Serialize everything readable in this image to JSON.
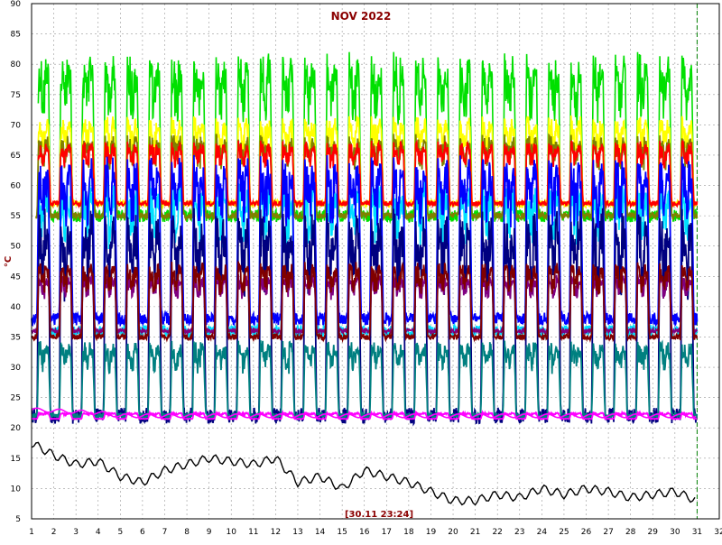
{
  "chart_data": {
    "type": "line",
    "title": "NOV 2022",
    "timestamp_label": "[30.11 23:24]",
    "ylabel": "°C",
    "xlabel": "",
    "xlim": [
      1,
      32
    ],
    "ylim": [
      5,
      90
    ],
    "x_ticks": [
      1,
      2,
      3,
      4,
      5,
      6,
      7,
      8,
      9,
      10,
      11,
      12,
      13,
      14,
      15,
      16,
      17,
      18,
      19,
      20,
      21,
      22,
      23,
      24,
      25,
      26,
      27,
      28,
      29,
      30,
      31,
      32
    ],
    "y_ticks": [
      5,
      10,
      15,
      20,
      25,
      30,
      35,
      40,
      45,
      50,
      55,
      60,
      65,
      70,
      75,
      80,
      85,
      90
    ],
    "grid": true,
    "current_marker_x": 31.0,
    "series": [
      {
        "color": "#00e000",
        "daily_peak": 81,
        "daily_trough": 55,
        "start_day": 1.3
      },
      {
        "color": "#ffff00",
        "daily_peak": 71,
        "daily_trough": 57,
        "start_day": 1.3
      },
      {
        "color": "#808000",
        "daily_peak": 68,
        "daily_trough": 55,
        "start_day": 1.2
      },
      {
        "color": "#ff0000",
        "daily_peak": 67,
        "daily_trough": 57,
        "start_day": 1.3
      },
      {
        "color": "#00e0ff",
        "daily_peak": 60,
        "daily_trough": 36,
        "start_day": 1.2
      },
      {
        "color": "#0000ff",
        "daily_peak": 64,
        "daily_trough": 38,
        "start_day": 1.0
      },
      {
        "color": "#000080",
        "daily_peak": 55,
        "daily_trough": 22,
        "start_day": 1.0
      },
      {
        "color": "#800080",
        "daily_peak": 45,
        "daily_trough": 36,
        "start_day": 1.0
      },
      {
        "color": "#800000",
        "daily_peak": 47,
        "daily_trough": 35,
        "start_day": 1.0
      },
      {
        "color": "#008080",
        "daily_peak": 34,
        "daily_trough": 22,
        "start_day": 1.0
      },
      {
        "color": "#ff00ff",
        "daily_peak": 22.5,
        "daily_trough": 21.5,
        "start_day": 1.0
      },
      {
        "color": "#000000",
        "daily_peak": 17,
        "daily_trough": 7,
        "start_day": 1.0
      }
    ],
    "outdoor_temperature": {
      "color": "#000000",
      "x": [
        1,
        2,
        3,
        4,
        5,
        6,
        7,
        8,
        9,
        10,
        11,
        12,
        13,
        14,
        15,
        16,
        17,
        18,
        19,
        20,
        21,
        22,
        23,
        24,
        25,
        26,
        27,
        28,
        29,
        30,
        31
      ],
      "y": [
        17.5,
        15.5,
        14,
        14.5,
        12,
        11,
        13,
        14,
        15,
        14.5,
        14,
        15,
        11,
        12,
        10,
        13,
        12,
        11,
        9.5,
        8,
        8,
        9,
        8.5,
        10,
        9,
        10,
        9.5,
        8.5,
        9,
        9.5,
        8
      ]
    },
    "base_temperature": {
      "color": "#ff00ff",
      "x": [
        1,
        4,
        5,
        31
      ],
      "y": [
        23,
        22.5,
        22,
        22
      ]
    }
  }
}
